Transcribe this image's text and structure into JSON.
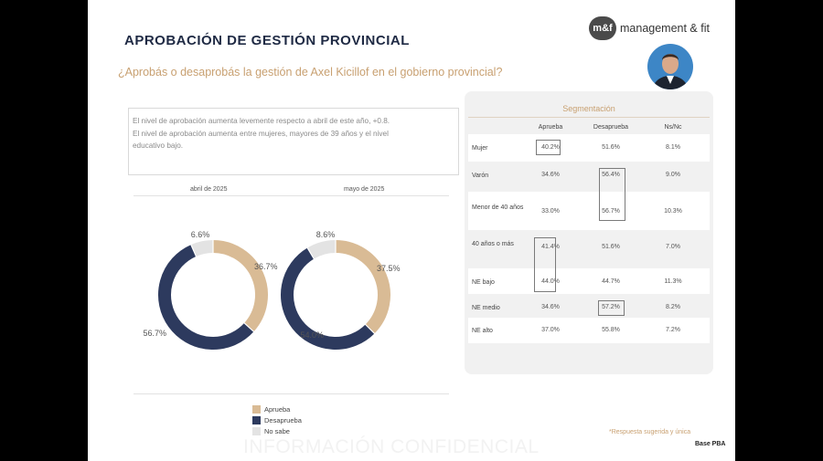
{
  "header": {
    "title": "APROBACIÓN DE GESTIÓN PROVINCIAL",
    "question": "¿Aprobás o desaprobás la gestión de Axel Kicillof en el gobierno provincial?",
    "logo_mark": "m&f",
    "logo_text": "management & fit"
  },
  "summary": {
    "line1": "El nivel de aprobación aumenta levemente respecto a abril de este año, +0.8.",
    "line2": "El nivel de aprobación aumenta entre mujeres, mayores de 39 años y el nivel",
    "line3": "educativo bajo."
  },
  "chart_data": [
    {
      "type": "pie",
      "title": "abril de 2025",
      "categories": [
        "Aprueba",
        "Desaprueba",
        "No sabe"
      ],
      "values": [
        36.7,
        56.7,
        6.6
      ],
      "labels": [
        "36.7%",
        "56.7%",
        "6.6%"
      ],
      "colors": [
        "#d9bb95",
        "#2d3a5e",
        "#e3e3e3"
      ]
    },
    {
      "type": "pie",
      "title": "mayo de 2025",
      "categories": [
        "Aprueba",
        "Desaprueba",
        "No sabe"
      ],
      "values": [
        37.5,
        54.0,
        8.6
      ],
      "labels": [
        "37.5%",
        "54.0%",
        "8.6%"
      ],
      "colors": [
        "#d9bb95",
        "#2d3a5e",
        "#e3e3e3"
      ]
    }
  ],
  "legend": [
    {
      "label": "Aprueba",
      "color": "#d9bb95"
    },
    {
      "label": "Desaprueba",
      "color": "#2d3a5e"
    },
    {
      "label": "No sabe",
      "color": "#e3e3e3"
    }
  ],
  "segmentation": {
    "title": "Segmentación",
    "columns": [
      "Aprueba",
      "Desaprueba",
      "Ns/Nc"
    ],
    "rows": [
      {
        "label": "Mujer",
        "values": [
          "40.2%",
          "51.6%",
          "8.1%"
        ]
      },
      {
        "label": "Varón",
        "values": [
          "34.6%",
          "56.4%",
          "9.0%"
        ]
      },
      {
        "label": "Menor de 40 años",
        "values": [
          "33.0%",
          "56.7%",
          "10.3%"
        ]
      },
      {
        "label": "40 años o más",
        "values": [
          "41.4%",
          "51.6%",
          "7.0%"
        ]
      },
      {
        "label": "NE bajo",
        "values": [
          "44.0%",
          "44.7%",
          "11.3%"
        ]
      },
      {
        "label": "NE medio",
        "values": [
          "34.6%",
          "57.2%",
          "8.2%"
        ]
      },
      {
        "label": "NE alto",
        "values": [
          "37.0%",
          "55.8%",
          "7.2%"
        ]
      }
    ]
  },
  "footer": {
    "note": "*Respuesta sugerida y única",
    "base": "Base PBA",
    "watermark": "INFORMACIÓN CONFIDENCIAL"
  }
}
